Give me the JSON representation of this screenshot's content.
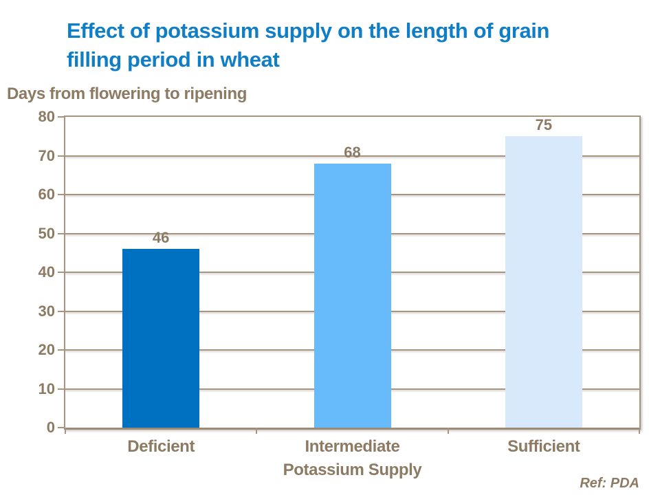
{
  "slide": {
    "title_line1": "Effect of potassium supply on the length of grain",
    "title_line2": "filling period in wheat",
    "ref_note": "Ref: PDA"
  },
  "colors": {
    "background": "#FFFFFF",
    "title_blue": "#0F7EC6",
    "text_brown": "#8C7A63",
    "line_tan": "#A6947E",
    "axis_tan": "#9C8A73"
  },
  "chart_data": {
    "type": "bar",
    "title": "Effect of potassium supply on the length of grain filling period in wheat",
    "categories": [
      "Deficient",
      "Intermediate",
      "Sufficient"
    ],
    "values": [
      46,
      68,
      75
    ],
    "bar_colors": [
      "#0070C0",
      "#68BBFA",
      "#D7E9FA"
    ],
    "xlabel": "Potassium Supply",
    "ylabel": "Days from flowering to ripening",
    "ylim": [
      0,
      80
    ],
    "yticks": [
      0,
      10,
      20,
      30,
      40,
      50,
      60,
      70,
      80
    ],
    "grid": true,
    "legend": false,
    "data_labels_shown": true
  }
}
